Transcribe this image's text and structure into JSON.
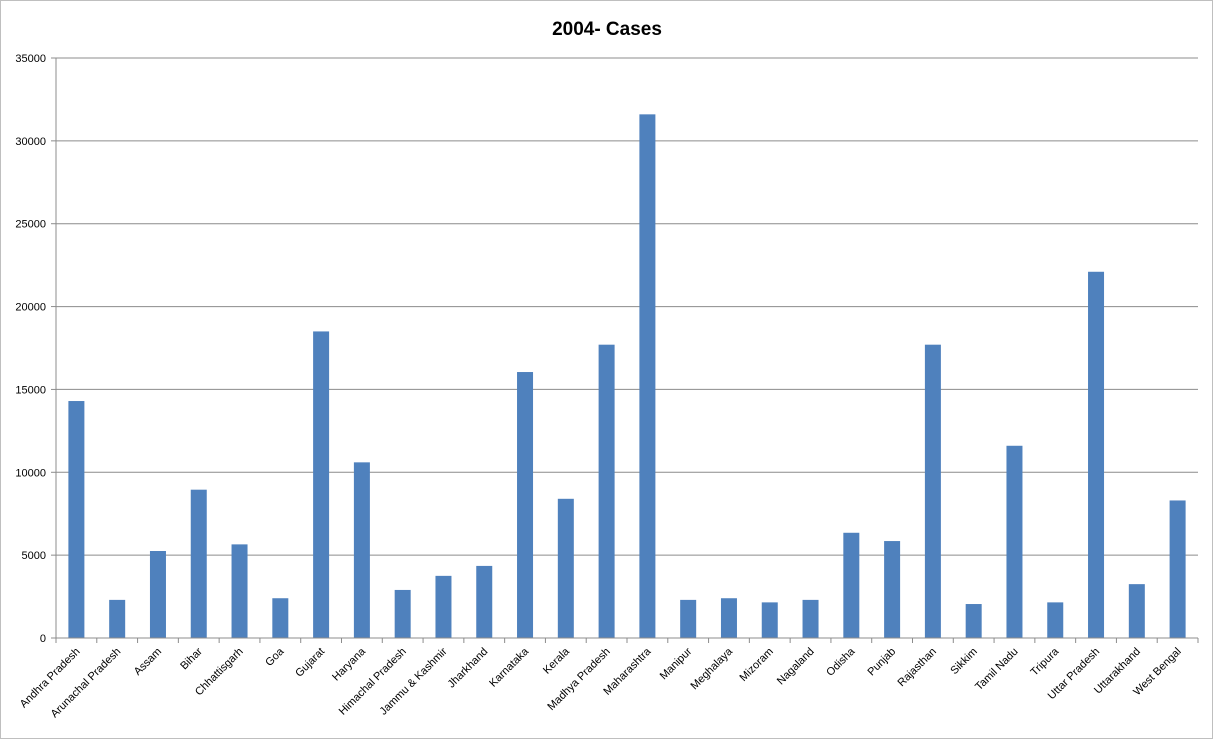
{
  "chart_data": {
    "type": "bar",
    "title": "2004- Cases",
    "xlabel": "",
    "ylabel": "",
    "ylim": [
      0,
      35000
    ],
    "yticks": [
      0,
      5000,
      10000,
      15000,
      20000,
      25000,
      30000,
      35000
    ],
    "grid": true,
    "legend": "none",
    "bar_color": "#4f81bd",
    "categories": [
      "Andhra Pradesh",
      "Arunachal Pradesh",
      "Assam",
      "Bihar",
      "Chhattisgarh",
      "Goa",
      "Gujarat",
      "Haryana",
      "Himachal Pradesh",
      "Jammu & Kashmir",
      "Jharkhand",
      "Karnataka",
      "Kerala",
      "Madhya Pradesh",
      "Maharashtra",
      "Manipur",
      "Meghalaya",
      "Mizoram",
      "Nagaland",
      "Odisha",
      "Punjab",
      "Rajasthan",
      "Sikkim",
      "Tamil Nadu",
      "Tripura",
      "Uttar Pradesh",
      "Uttarakhand",
      "West Bengal"
    ],
    "values": [
      14300,
      2300,
      5250,
      8950,
      5650,
      2400,
      18500,
      10600,
      2900,
      3750,
      4350,
      16050,
      8400,
      17700,
      31600,
      2300,
      2400,
      2150,
      2300,
      6350,
      5850,
      17700,
      2050,
      11600,
      2150,
      22100,
      3250,
      8300
    ]
  }
}
